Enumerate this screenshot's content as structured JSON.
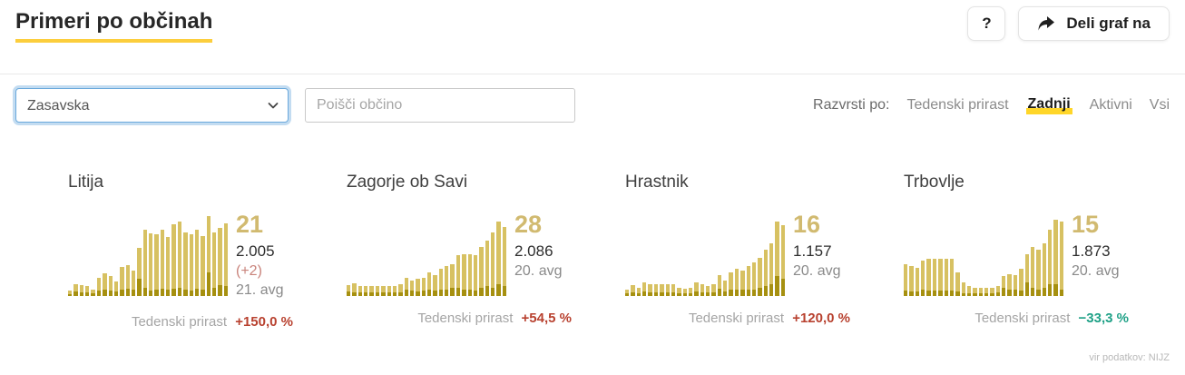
{
  "header": {
    "title": "Primeri po občinah",
    "help_button": "?",
    "share_button": "Deli graf na"
  },
  "filters": {
    "region_select": {
      "value": "Zasavska"
    },
    "search": {
      "placeholder": "Poišči občino"
    },
    "sort": {
      "label": "Razvrsti po:",
      "options": [
        {
          "label": "Tedenski prirast",
          "active": false
        },
        {
          "label": "Zadnji",
          "active": true
        },
        {
          "label": "Aktivni",
          "active": false
        },
        {
          "label": "Vsi",
          "active": false
        }
      ]
    }
  },
  "colors": {
    "brand_yellow": "#fcce3d",
    "highlight_yellow": "#ffd629",
    "bar_light": "#d7c162",
    "bar_dark": "#a69010",
    "headline_gold": "#d1ba70",
    "trend_up_red": "#b8412f",
    "trend_down_green": "#1fa187"
  },
  "cards": [
    {
      "title": "Litija",
      "last_value": "21",
      "total": "2.005",
      "delta": "(+2)",
      "date": "21. avg",
      "trend_label": "Tedenski prirast",
      "trend_value": "+150,0 %",
      "trend_color": "#b8412f",
      "chart_data": {
        "type": "bar",
        "unit": "percent_of_chart_height",
        "series": [
          {
            "name": "potrjeni-skupaj",
            "values": [
              6,
              14,
              13,
              12,
              8,
              21,
              27,
              24,
              17,
              34,
              37,
              30,
              57,
              78,
              74,
              73,
              79,
              70,
              85,
              88,
              75,
              73,
              78,
              71,
              95,
              75,
              81,
              86
            ]
          },
          {
            "name": "aktivni-del",
            "values": [
              2,
              5,
              4,
              4,
              3,
              6,
              8,
              7,
              5,
              8,
              9,
              8,
              20,
              10,
              7,
              8,
              9,
              8,
              9,
              10,
              8,
              7,
              9,
              8,
              28,
              10,
              13,
              12
            ]
          }
        ]
      }
    },
    {
      "title": "Zagorje ob Savi",
      "last_value": "28",
      "total": "2.086",
      "delta": "",
      "date": "20. avg",
      "trend_label": "Tedenski prirast",
      "trend_value": "+54,5 %",
      "trend_color": "#b8412f",
      "chart_data": {
        "type": "bar",
        "unit": "percent_of_chart_height",
        "series": [
          {
            "name": "potrjeni-skupaj",
            "values": [
              13,
              15,
              12,
              12,
              12,
              12,
              12,
              12,
              12,
              14,
              22,
              18,
              20,
              22,
              28,
              25,
              32,
              35,
              38,
              48,
              50,
              50,
              48,
              58,
              66,
              75,
              88,
              82
            ]
          },
          {
            "name": "aktivni-del",
            "values": [
              5,
              4,
              4,
              4,
              4,
              4,
              4,
              4,
              4,
              4,
              8,
              6,
              5,
              6,
              8,
              6,
              8,
              8,
              10,
              10,
              8,
              8,
              6,
              10,
              12,
              10,
              14,
              12
            ]
          }
        ]
      }
    },
    {
      "title": "Hrastnik",
      "last_value": "16",
      "total": "1.157",
      "delta": "",
      "date": "20. avg",
      "trend_label": "Tedenski prirast",
      "trend_value": "+120,0 %",
      "trend_color": "#b8412f",
      "chart_data": {
        "type": "bar",
        "unit": "percent_of_chart_height",
        "series": [
          {
            "name": "potrjeni-skupaj",
            "values": [
              8,
              13,
              10,
              16,
              14,
              14,
              14,
              14,
              14,
              10,
              9,
              10,
              16,
              14,
              12,
              14,
              25,
              18,
              28,
              32,
              30,
              35,
              40,
              45,
              55,
              62,
              88,
              84
            ]
          },
          {
            "name": "aktivni-del",
            "values": [
              3,
              4,
              3,
              5,
              4,
              4,
              4,
              4,
              4,
              3,
              3,
              3,
              5,
              4,
              4,
              4,
              9,
              5,
              8,
              8,
              8,
              8,
              8,
              10,
              12,
              14,
              24,
              20
            ]
          }
        ]
      }
    },
    {
      "title": "Trbovlje",
      "last_value": "15",
      "total": "1.873",
      "delta": "",
      "date": "20. avg",
      "trend_label": "Tedenski prirast",
      "trend_value": "−33,3 %",
      "trend_color": "#1fa187",
      "chart_data": {
        "type": "bar",
        "unit": "percent_of_chart_height",
        "series": [
          {
            "name": "potrjeni-skupaj",
            "values": [
              38,
              35,
              33,
              42,
              44,
              44,
              44,
              44,
              44,
              28,
              16,
              12,
              10,
              10,
              10,
              10,
              12,
              24,
              26,
              25,
              32,
              50,
              58,
              55,
              62,
              78,
              90,
              88
            ]
          },
          {
            "name": "aktivni-del",
            "values": [
              6,
              5,
              5,
              8,
              6,
              6,
              6,
              6,
              6,
              5,
              3,
              3,
              3,
              3,
              3,
              3,
              4,
              10,
              8,
              8,
              6,
              16,
              10,
              8,
              10,
              14,
              14,
              8
            ]
          }
        ]
      }
    }
  ],
  "footer": {
    "source_note": "vir podatkov: NIJZ"
  }
}
